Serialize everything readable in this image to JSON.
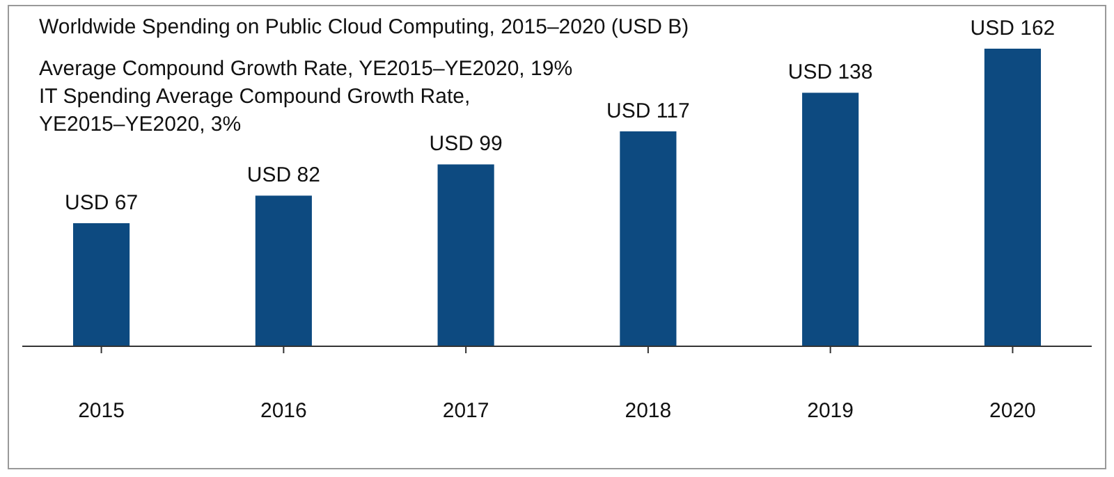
{
  "chart_data": {
    "type": "bar",
    "title": "Worldwide Spending on Public Cloud Computing, 2015–2020 (USD B)",
    "annotations": [
      "Average Compound Growth Rate, YE2015–YE2020, 19%",
      "IT Spending Average Compound Growth Rate, YE2015–YE2020, 3%"
    ],
    "categories": [
      "2015",
      "2016",
      "2017",
      "2018",
      "2019",
      "2020"
    ],
    "values": [
      67,
      82,
      99,
      117,
      138,
      162
    ],
    "value_labels": [
      "USD 67",
      "USD 82",
      "USD 99",
      "USD 117",
      "USD 138",
      "USD 162"
    ],
    "color": "#0d4a80"
  }
}
